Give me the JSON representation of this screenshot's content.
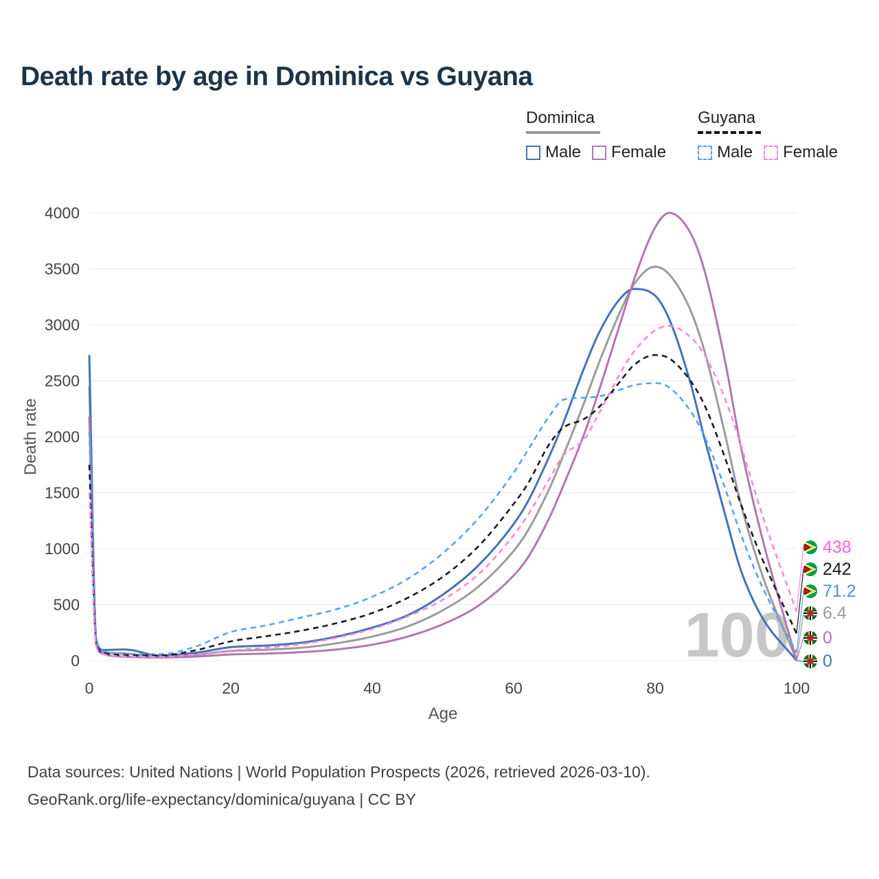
{
  "title": "Death rate by age in Dominica vs Guyana",
  "legend": {
    "groups": [
      {
        "label": "Dominica",
        "line_style": "solid",
        "line_color": "#999999",
        "items": [
          {
            "label": "Male",
            "color": "#4472b8",
            "dashed": false
          },
          {
            "label": "Female",
            "color": "#b277ae",
            "dashed": false
          }
        ]
      },
      {
        "label": "Guyana",
        "line_style": "dashed",
        "line_color": "#111111",
        "items": [
          {
            "label": "Male",
            "color": "#58a2f5",
            "dashed": true
          },
          {
            "label": "Female",
            "color": "#ff85e0",
            "dashed": true
          }
        ]
      }
    ]
  },
  "axes": {
    "x_label": "Age",
    "y_label": "Death rate"
  },
  "chart_data": {
    "type": "line",
    "title": "Death rate by age in Dominica vs Guyana",
    "xlabel": "Age",
    "ylabel": "Death rate",
    "xlim": [
      0,
      100
    ],
    "ylim": [
      0,
      4000
    ],
    "x_ticks": [
      0,
      20,
      40,
      60,
      80,
      100
    ],
    "y_ticks": [
      0,
      500,
      1000,
      1500,
      2000,
      2500,
      3000,
      3500,
      4000
    ],
    "grid": "horizontal",
    "legend_position": "top-right",
    "watermark": "100",
    "ages": [
      0,
      1,
      2,
      5,
      10,
      15,
      20,
      25,
      30,
      35,
      40,
      45,
      50,
      55,
      60,
      62,
      65,
      67,
      70,
      72,
      75,
      77,
      80,
      82,
      85,
      87,
      90,
      92,
      95,
      100
    ],
    "series": [
      {
        "name": "Dominica",
        "gender": "both",
        "color": "#9b9b9b",
        "dashed": false,
        "values": [
          2450,
          160,
          78,
          65,
          36,
          53,
          86,
          97,
          115,
          155,
          215,
          305,
          450,
          660,
          980,
          1160,
          1530,
          1830,
          2310,
          2650,
          3110,
          3360,
          3520,
          3450,
          3130,
          2760,
          1990,
          1430,
          790,
          6.4
        ]
      },
      {
        "name": "Dominica Male",
        "gender": "male",
        "color": "#4472b8",
        "dashed": false,
        "values": [
          2730,
          180,
          95,
          100,
          45,
          70,
          120,
          135,
          160,
          215,
          295,
          405,
          590,
          850,
          1220,
          1420,
          1820,
          2120,
          2620,
          2920,
          3230,
          3320,
          3260,
          3050,
          2480,
          1980,
          1280,
          830,
          400,
          0
        ]
      },
      {
        "name": "Dominica Female",
        "gender": "female",
        "color": "#b277ae",
        "dashed": false,
        "values": [
          2180,
          140,
          60,
          35,
          28,
          36,
          55,
          63,
          76,
          100,
          142,
          215,
          325,
          490,
          760,
          920,
          1270,
          1560,
          2030,
          2400,
          3000,
          3400,
          3870,
          4000,
          3820,
          3480,
          2640,
          1950,
          1130,
          0
        ]
      },
      {
        "name": "Guyana Male",
        "gender": "male",
        "color": "#58a2f5",
        "dashed": true,
        "values": [
          2050,
          165,
          85,
          60,
          58,
          125,
          255,
          315,
          385,
          460,
          570,
          730,
          960,
          1270,
          1680,
          1880,
          2180,
          2330,
          2350,
          2360,
          2420,
          2460,
          2480,
          2440,
          2230,
          2000,
          1520,
          1150,
          680,
          71.2
        ]
      },
      {
        "name": "Guyana",
        "gender": "both",
        "color": "#1a1a1a",
        "dashed": true,
        "values": [
          1750,
          150,
          72,
          50,
          46,
          92,
          172,
          218,
          268,
          335,
          425,
          560,
          750,
          1020,
          1400,
          1580,
          1930,
          2080,
          2160,
          2260,
          2490,
          2640,
          2730,
          2700,
          2500,
          2280,
          1790,
          1420,
          930,
          242
        ]
      },
      {
        "name": "Guyana Female",
        "gender": "female",
        "color": "#ff85e0",
        "dashed": true,
        "values": [
          1500,
          130,
          58,
          38,
          34,
          56,
          90,
          116,
          147,
          205,
          282,
          395,
          545,
          770,
          1120,
          1300,
          1620,
          1830,
          1980,
          2200,
          2560,
          2760,
          2950,
          2990,
          2890,
          2730,
          2320,
          1950,
          1330,
          438
        ]
      }
    ],
    "end_labels": [
      {
        "text": "438",
        "series_index": 5,
        "color": "#ff5fd7",
        "flag": "guyana"
      },
      {
        "text": "242",
        "series_index": 4,
        "color": "#1a1a1a",
        "flag": "guyana"
      },
      {
        "text": "71.2",
        "series_index": 3,
        "color": "#4a90e8",
        "flag": "guyana"
      },
      {
        "text": "6.4",
        "series_index": 0,
        "color": "#9b9b9b",
        "flag": "dominica"
      },
      {
        "text": "0",
        "series_index": 2,
        "color": "#b277ae",
        "flag": "dominica"
      },
      {
        "text": "0",
        "series_index": 1,
        "color": "#4472b8",
        "flag": "dominica"
      }
    ]
  },
  "footer": {
    "line1": "Data sources: United Nations | World Population Prospects (2026, retrieved 2026-03-10).",
    "line2": "GeoRank.org/life-expectancy/dominica/guyana | CC BY"
  }
}
